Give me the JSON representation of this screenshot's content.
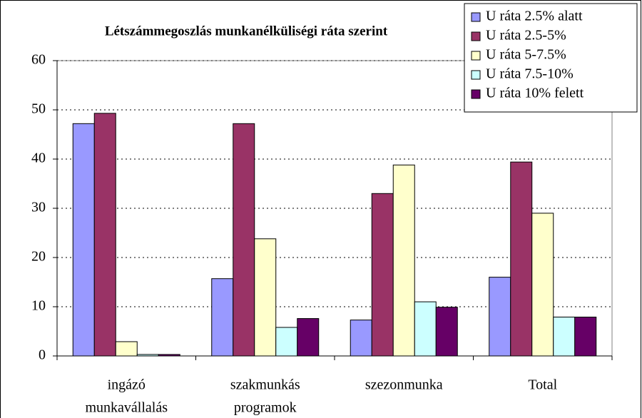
{
  "chart_data": {
    "type": "bar",
    "title": "Létszámmegoszlás munkanélküliségi  ráta szerint",
    "categories": [
      [
        "ingázó",
        "munkavállalás"
      ],
      [
        "szakmunkás",
        "programok"
      ],
      [
        "szezonmunka"
      ],
      [
        "Total"
      ]
    ],
    "series": [
      {
        "name": "U ráta 2.5% alatt",
        "color": "#9999ff",
        "values": [
          47.2,
          15.7,
          7.3,
          16.0
        ]
      },
      {
        "name": "U ráta 2.5-5%",
        "color": "#993366",
        "values": [
          49.3,
          47.2,
          33.0,
          39.4
        ]
      },
      {
        "name": "U ráta 5-7.5%",
        "color": "#ffffcc",
        "values": [
          2.9,
          23.8,
          38.8,
          29.0
        ]
      },
      {
        "name": "U ráta 7.5-10%",
        "color": "#ccffff",
        "values": [
          0.3,
          5.8,
          11.0,
          7.9
        ]
      },
      {
        "name": "U ráta 10% felett",
        "color": "#660066",
        "values": [
          0.3,
          7.6,
          9.9,
          7.9
        ]
      }
    ],
    "ylim": [
      0,
      60
    ],
    "yticks": [
      0,
      10,
      20,
      30,
      40,
      50,
      60
    ],
    "grid": true,
    "legend": "top-right"
  }
}
